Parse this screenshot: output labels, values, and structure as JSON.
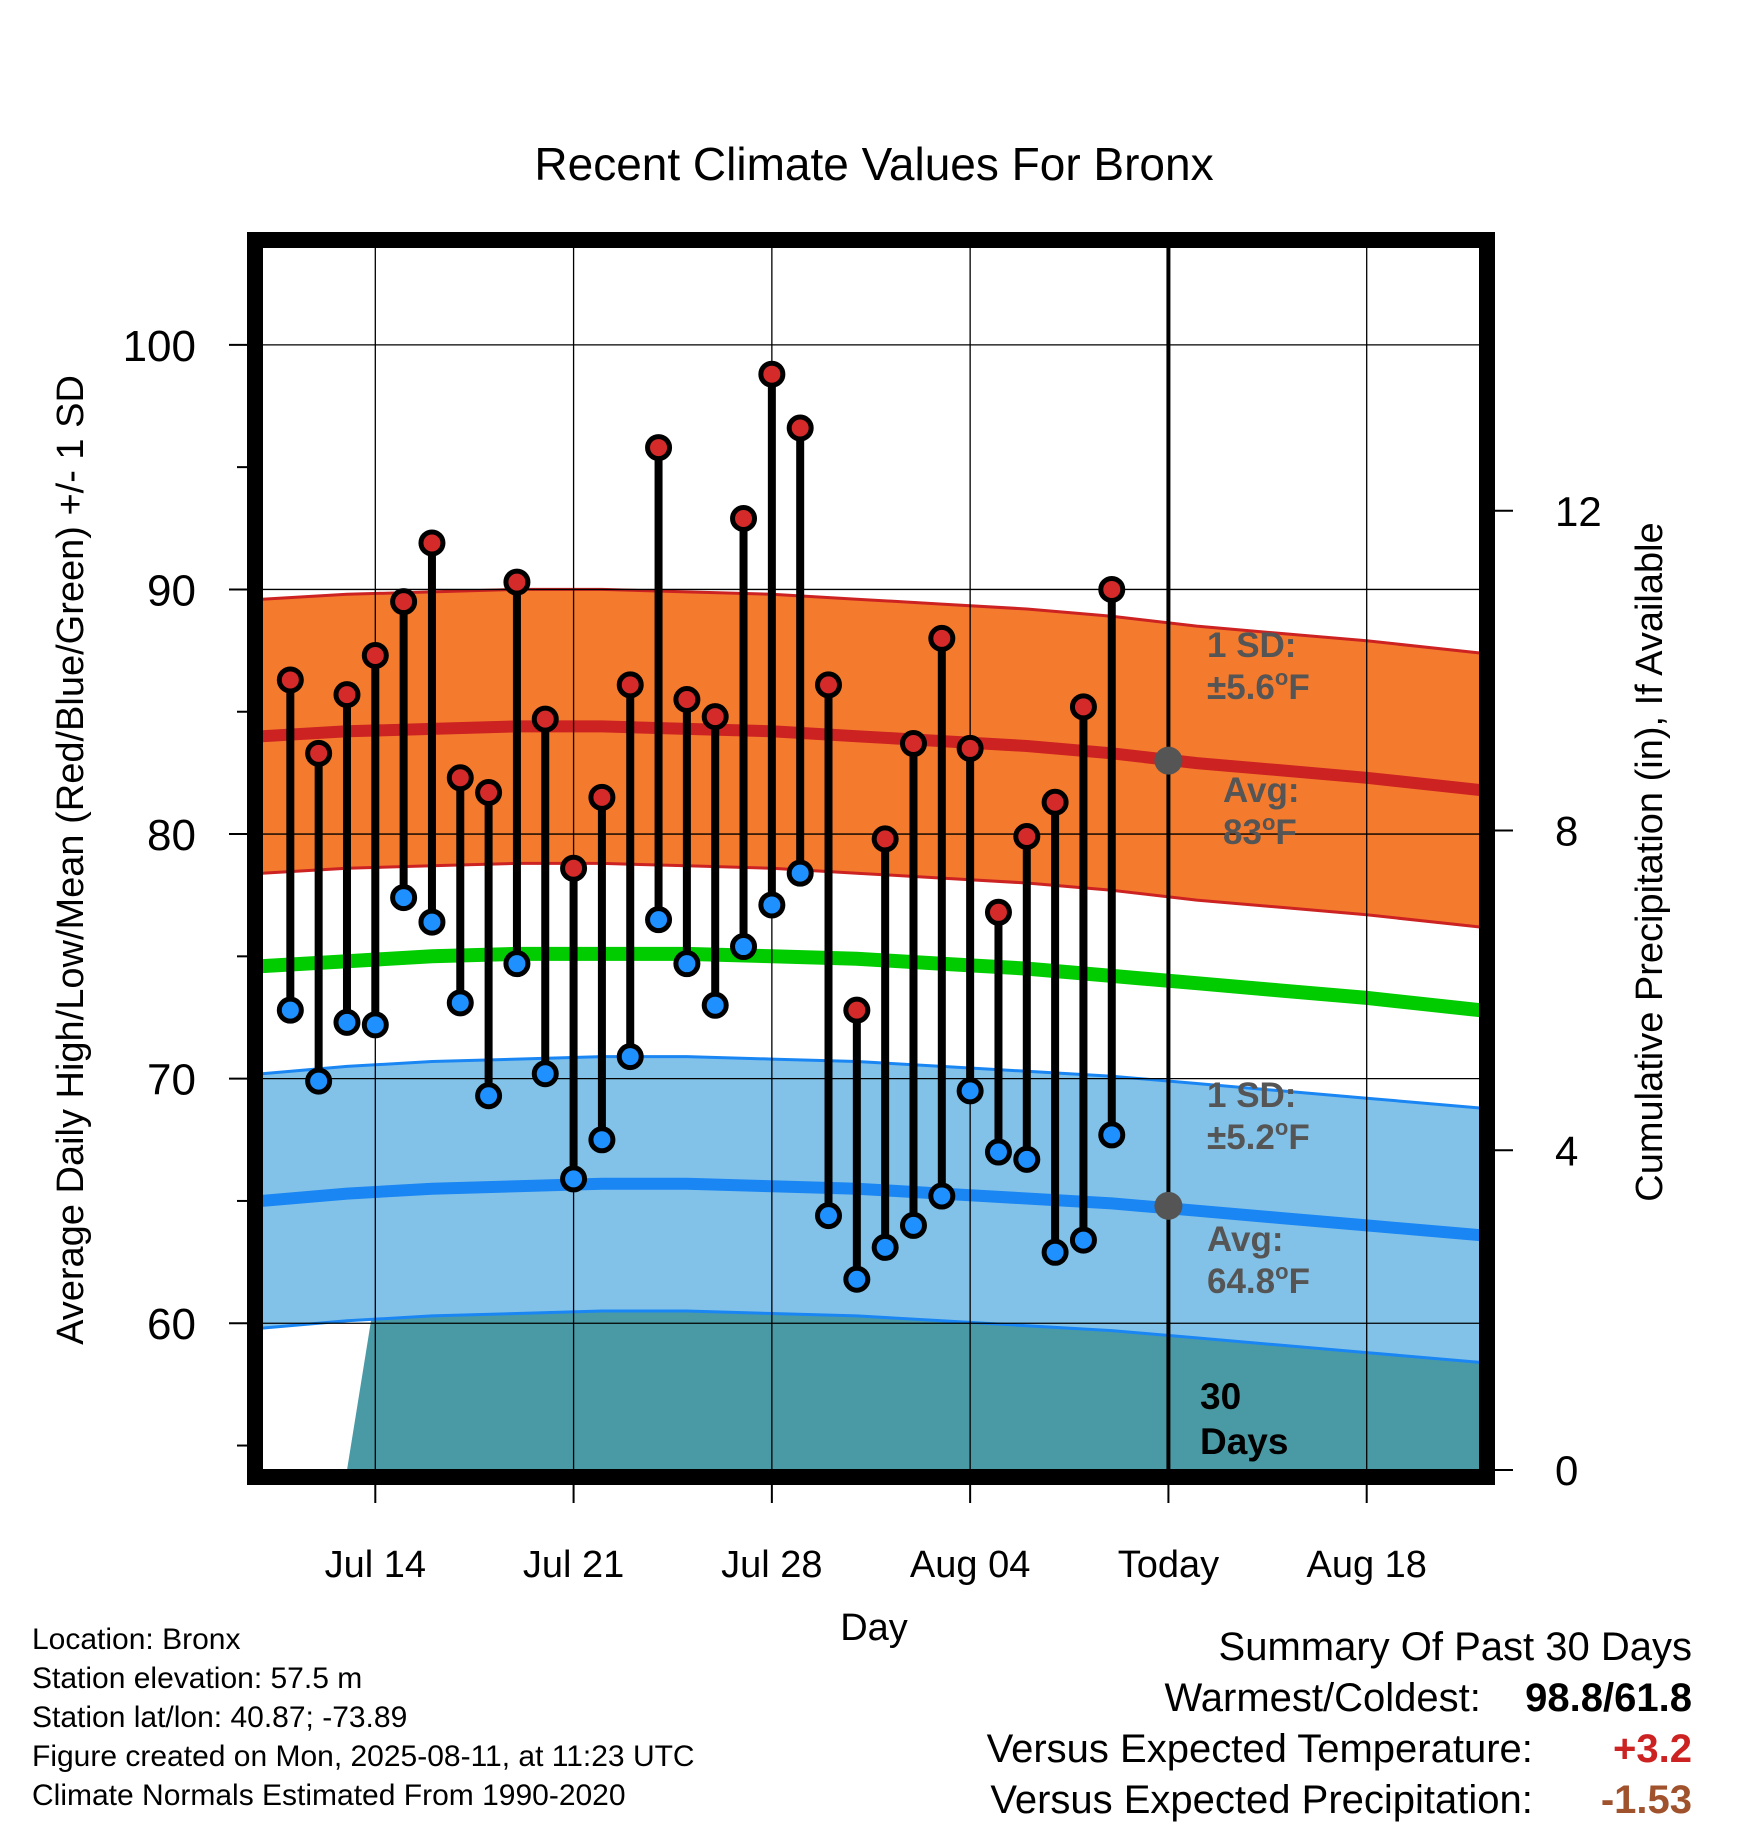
{
  "chart_data": {
    "type": "line",
    "title": "Recent Climate Values For Bronx",
    "xlabel": "Day",
    "ylabel": "Average Daily High/Low/Mean (Red/Blue/Green) +/- 1 SD",
    "y2label": "Cumulative Precipitation (in), If Available",
    "ylim": [
      54,
      104
    ],
    "y_ticks": [
      60,
      70,
      80,
      90,
      100
    ],
    "y2lim": [
      0,
      15.3
    ],
    "y2_ticks": [
      0,
      4,
      8,
      12
    ],
    "xlim": [
      "2025-07-10",
      "2025-08-22"
    ],
    "x_ticks": [
      {
        "date": "2025-07-14",
        "label": "Jul 14"
      },
      {
        "date": "2025-07-21",
        "label": "Jul 21"
      },
      {
        "date": "2025-07-28",
        "label": "Jul 28"
      },
      {
        "date": "2025-08-04",
        "label": "Aug 04"
      },
      {
        "date": "2025-08-11",
        "label": "Today"
      },
      {
        "date": "2025-08-18",
        "label": "Aug 18"
      }
    ],
    "grid": true,
    "today": "2025-08-11",
    "daily": {
      "dates": [
        "2025-07-11",
        "2025-07-12",
        "2025-07-13",
        "2025-07-14",
        "2025-07-15",
        "2025-07-16",
        "2025-07-17",
        "2025-07-18",
        "2025-07-19",
        "2025-07-20",
        "2025-07-21",
        "2025-07-22",
        "2025-07-23",
        "2025-07-24",
        "2025-07-25",
        "2025-07-26",
        "2025-07-27",
        "2025-07-28",
        "2025-07-29",
        "2025-07-30",
        "2025-07-31",
        "2025-08-01",
        "2025-08-02",
        "2025-08-03",
        "2025-08-04",
        "2025-08-05",
        "2025-08-06",
        "2025-08-07",
        "2025-08-08",
        "2025-08-09",
        "2025-08-10"
      ],
      "high": [
        86.3,
        83.3,
        85.7,
        87.3,
        89.5,
        91.9,
        82.3,
        81.7,
        90.3,
        84.7,
        78.6,
        81.5,
        86.1,
        95.8,
        85.5,
        84.8,
        92.9,
        98.8,
        96.6,
        86.1,
        72.8,
        79.8,
        83.7,
        88.0,
        83.5,
        76.8,
        79.9,
        81.3,
        85.2,
        90.0,
        null
      ],
      "low": [
        72.8,
        69.9,
        72.3,
        72.2,
        77.4,
        76.4,
        73.1,
        69.3,
        74.7,
        70.2,
        65.9,
        67.5,
        70.9,
        76.5,
        74.7,
        73.0,
        75.4,
        77.1,
        78.4,
        64.4,
        61.8,
        63.1,
        64.0,
        65.2,
        69.5,
        67.0,
        66.7,
        62.9,
        63.4,
        67.7,
        null
      ]
    },
    "normals": {
      "dates": [
        "2025-07-10",
        "2025-07-13",
        "2025-07-16",
        "2025-07-19",
        "2025-07-22",
        "2025-07-25",
        "2025-07-28",
        "2025-07-31",
        "2025-08-03",
        "2025-08-06",
        "2025-08-09",
        "2025-08-12",
        "2025-08-15",
        "2025-08-18",
        "2025-08-22"
      ],
      "high_avg": [
        84.0,
        84.2,
        84.3,
        84.4,
        84.4,
        84.3,
        84.2,
        84.0,
        83.8,
        83.6,
        83.3,
        82.9,
        82.6,
        82.3,
        81.8
      ],
      "high_sd": 5.6,
      "mean": [
        74.6,
        74.8,
        75.0,
        75.1,
        75.1,
        75.1,
        75.0,
        74.9,
        74.7,
        74.5,
        74.2,
        73.9,
        73.6,
        73.3,
        72.8
      ],
      "low_avg": [
        65.0,
        65.3,
        65.5,
        65.6,
        65.7,
        65.7,
        65.6,
        65.5,
        65.3,
        65.1,
        64.9,
        64.6,
        64.3,
        64.0,
        63.6
      ],
      "low_sd": 5.2
    },
    "precip": {
      "dates": [
        "2025-07-11",
        "2025-07-12",
        "2025-07-13",
        "2025-07-14",
        "2025-07-21",
        "2025-07-27",
        "2025-07-28",
        "2025-07-30",
        "2025-07-31",
        "2025-08-01",
        "2025-08-07",
        "2025-08-11",
        "2025-08-22"
      ],
      "values": [
        0,
        0,
        0,
        2.2,
        2.2,
        2.2,
        2.25,
        2.25,
        2.6,
        2.6,
        2.63,
        2.63,
        2.63
      ]
    },
    "annotations": {
      "high_sd": {
        "line1": "1 SD:",
        "line2": "±5.6",
        "unit": "oF"
      },
      "high_avg": {
        "line1": "Avg:",
        "line2": "83",
        "unit": "oF",
        "value": 83.0
      },
      "low_sd": {
        "line1": "1 SD:",
        "line2": "±5.2",
        "unit": "oF"
      },
      "low_avg": {
        "line1": "Avg:",
        "line2": "64.8",
        "unit": "oF",
        "value": 64.8
      },
      "days": {
        "line1": "30",
        "line2": "Days"
      }
    },
    "colors": {
      "high_band": "#f47b2d",
      "high_line": "#cc2222",
      "mean_line": "#00cc00",
      "low_band": "#83c2e8",
      "low_line": "#1a86f3",
      "precip": "#4a9aa5",
      "high_marker": "#d42a2a",
      "low_marker": "#1e90ff",
      "annotation": "#555555"
    }
  },
  "info": {
    "location": "Location: Bronx",
    "elevation": "Station elevation: 57.5 m",
    "latlon": "Station lat/lon: 40.87; -73.89",
    "created": "Figure created on Mon, 2025-08-11, at 11:23 UTC",
    "normals": "Climate Normals Estimated From 1990-2020"
  },
  "summary": {
    "title": "Summary Of Past 30 Days",
    "warm_cold_label": "Warmest/Coldest:",
    "warm_cold_value": "98.8/61.8",
    "temp_label": "Versus Expected Temperature:",
    "temp_value": "+3.2",
    "temp_color": "#cc2222",
    "precip_label": "Versus Expected Precipitation:",
    "precip_value": "-1.53",
    "precip_color": "#a0522d"
  }
}
